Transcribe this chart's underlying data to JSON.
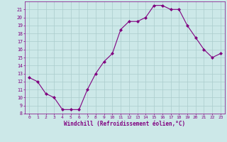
{
  "xlabel": "Windchill (Refroidissement éolien,°C)",
  "x": [
    0,
    1,
    2,
    3,
    4,
    5,
    6,
    7,
    8,
    9,
    10,
    11,
    12,
    13,
    14,
    15,
    16,
    17,
    18,
    19,
    20,
    21,
    22,
    23
  ],
  "y": [
    12.5,
    12.0,
    10.5,
    10.0,
    8.5,
    8.5,
    8.5,
    11.0,
    13.0,
    14.5,
    15.5,
    18.5,
    19.5,
    19.5,
    20.0,
    21.5,
    21.5,
    21.0,
    21.0,
    19.0,
    17.5,
    16.0,
    15.0,
    15.5
  ],
  "line_color": "#800080",
  "marker": "D",
  "marker_size": 2.0,
  "bg_color": "#cce8e8",
  "grid_color": "#aacccc",
  "tick_color": "#800080",
  "label_color": "#800080",
  "ylim": [
    8,
    22
  ],
  "yticks": [
    8,
    9,
    10,
    11,
    12,
    13,
    14,
    15,
    16,
    17,
    18,
    19,
    20,
    21
  ],
  "xticks": [
    0,
    1,
    2,
    3,
    4,
    5,
    6,
    7,
    8,
    9,
    10,
    11,
    12,
    13,
    14,
    15,
    16,
    17,
    18,
    19,
    20,
    21,
    22,
    23
  ]
}
